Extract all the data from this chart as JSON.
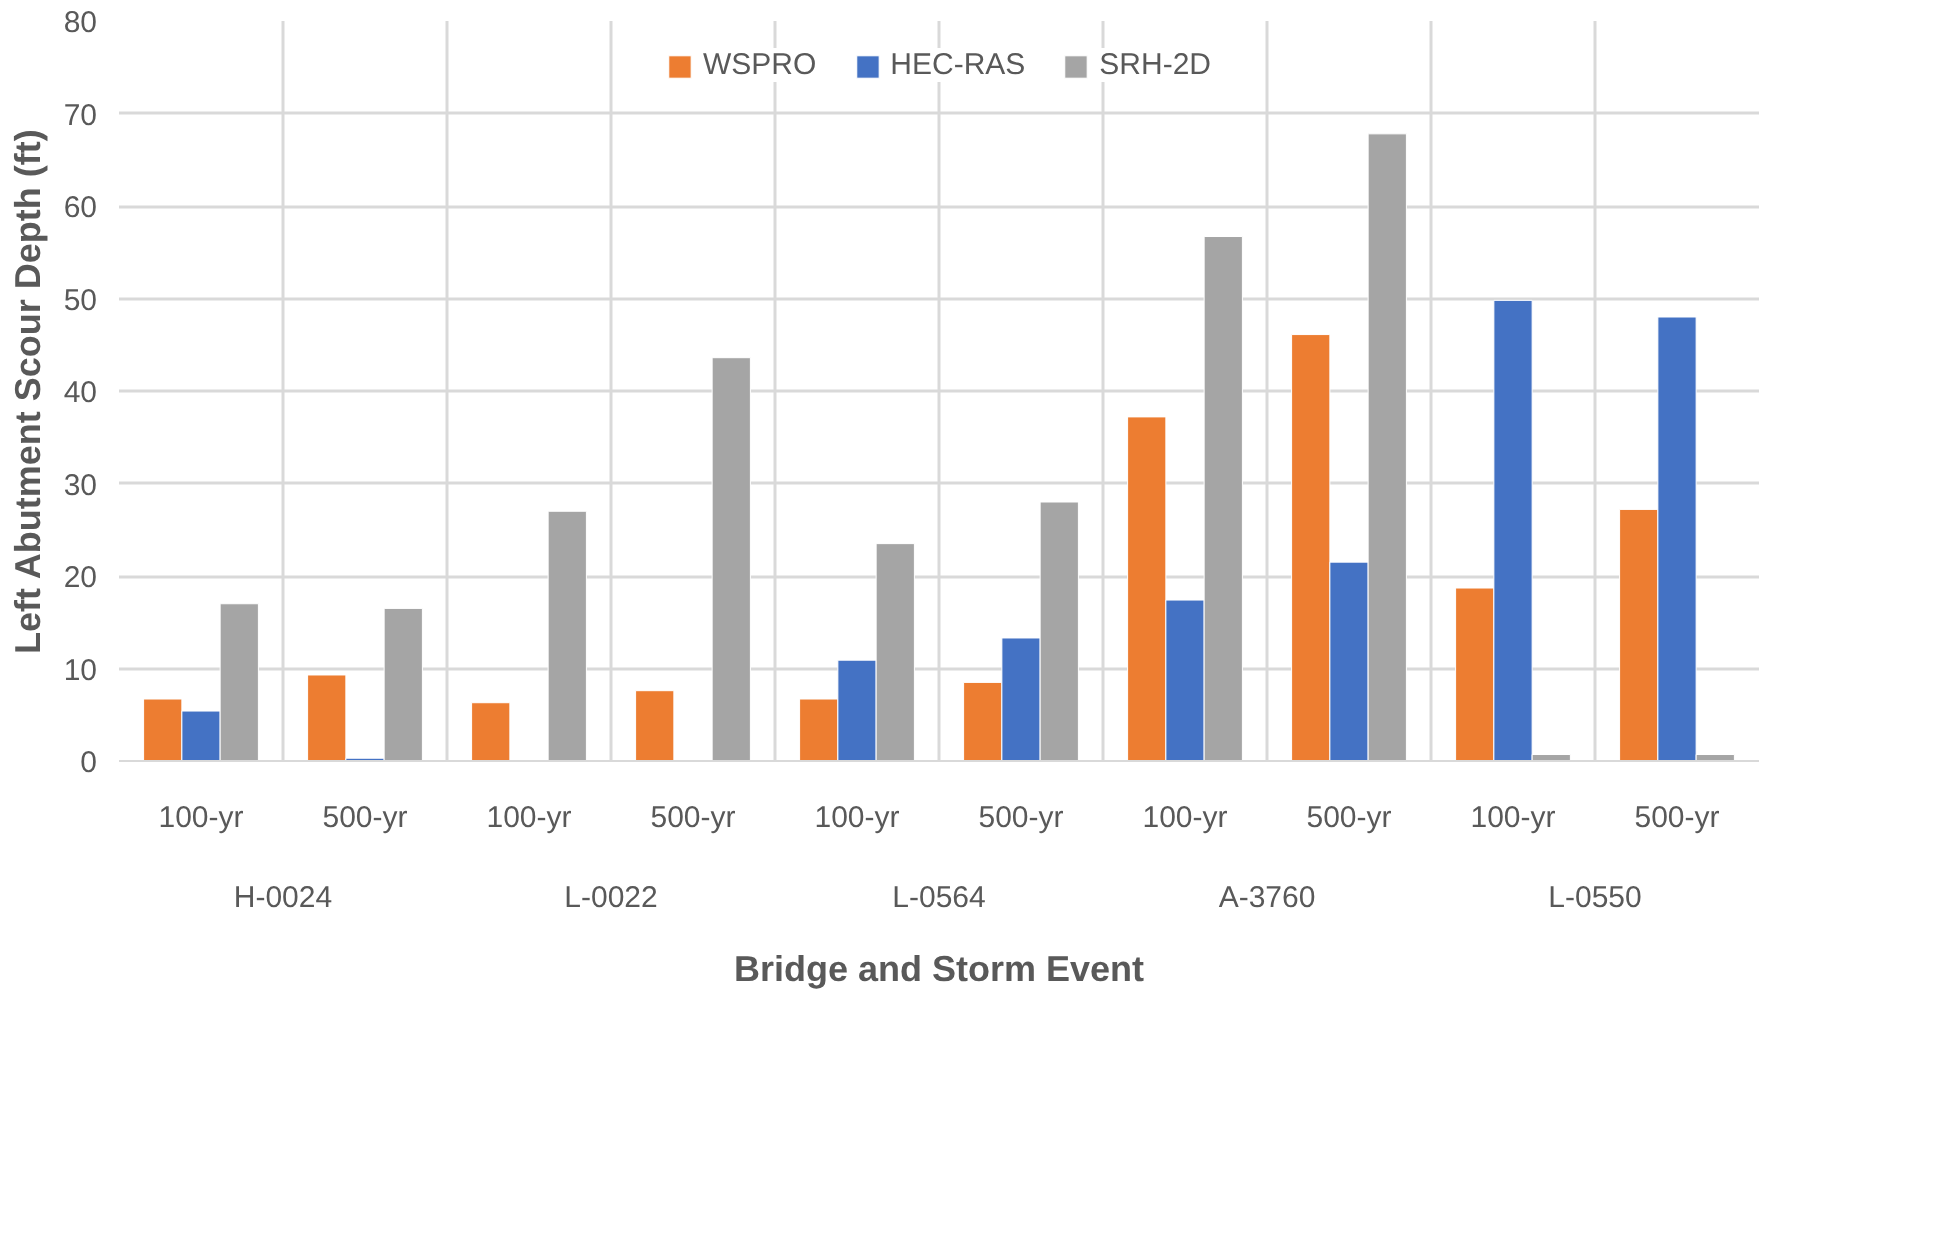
{
  "chart_data": {
    "type": "bar",
    "xlabel": "Bridge and Storm Event",
    "ylabel": "Left Abutment Scour Depth (ft)",
    "categories": [
      "100-yr",
      "500-yr",
      "100-yr",
      "500-yr",
      "100-yr",
      "500-yr",
      "100-yr",
      "500-yr",
      "100-yr",
      "500-yr"
    ],
    "annotations": [
      "H-0024",
      "L-0022",
      "L-0564",
      "A-3760",
      "L-0550"
    ],
    "series": [
      {
        "name": "WSPRO",
        "color": "#ed7d31",
        "values": [
          6.7,
          9.3,
          6.3,
          7.6,
          6.7,
          8.5,
          37.2,
          46.1,
          18.7,
          27.2
        ]
      },
      {
        "name": "HEC-RAS",
        "color": "#4472c4",
        "values": [
          5.4,
          0.3,
          null,
          null,
          10.9,
          13.3,
          17.4,
          21.5,
          49.8,
          48.0
        ]
      },
      {
        "name": "SRH-2D",
        "color": "#a5a5a5",
        "values": [
          17.0,
          16.5,
          27.0,
          43.6,
          23.5,
          28.0,
          56.7,
          67.8,
          0.7,
          0.7
        ]
      }
    ],
    "ylim": [
      0,
      80
    ],
    "yticks": [
      0,
      10,
      20,
      30,
      40,
      50,
      60,
      70,
      80
    ],
    "grid": true,
    "legend": "top"
  }
}
